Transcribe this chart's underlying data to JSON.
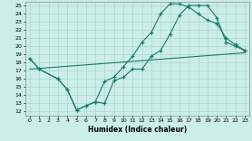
{
  "bg_color": "#cceee8",
  "grid_color": "#aad8d0",
  "line_color": "#1a7a6e",
  "xlim": [
    -0.5,
    23.5
  ],
  "ylim": [
    11.5,
    25.5
  ],
  "xtick_vals": [
    0,
    1,
    2,
    3,
    4,
    5,
    6,
    7,
    8,
    9,
    10,
    11,
    12,
    13,
    14,
    15,
    16,
    17,
    18,
    19,
    20,
    21,
    22,
    23
  ],
  "ytick_vals": [
    12,
    13,
    14,
    15,
    16,
    17,
    18,
    19,
    20,
    21,
    22,
    23,
    24,
    25
  ],
  "xlabel": "Humidex (Indice chaleur)",
  "line1_x": [
    0,
    1,
    3,
    4,
    5,
    6,
    7,
    8,
    9,
    10,
    11,
    12,
    13,
    14,
    15,
    16,
    17,
    18,
    19,
    20,
    21,
    22,
    23
  ],
  "line1_y": [
    18.5,
    17.2,
    16.0,
    14.7,
    12.2,
    12.7,
    13.2,
    13.0,
    15.8,
    16.2,
    17.2,
    17.2,
    18.8,
    19.5,
    21.5,
    23.8,
    25.0,
    25.0,
    25.0,
    23.5,
    20.5,
    20.0,
    19.5
  ],
  "line2_x": [
    0,
    1,
    3,
    4,
    5,
    6,
    7,
    8,
    9,
    10,
    11,
    12,
    13,
    14,
    15,
    16,
    17,
    18,
    19,
    20,
    21,
    22,
    23
  ],
  "line2_y": [
    18.5,
    17.2,
    16.0,
    14.7,
    12.2,
    12.7,
    13.2,
    15.7,
    16.2,
    17.5,
    18.8,
    20.5,
    21.7,
    24.0,
    25.2,
    25.2,
    24.8,
    24.0,
    23.2,
    22.8,
    21.0,
    20.2,
    19.5
  ],
  "line3_x": [
    0,
    23
  ],
  "line3_y": [
    17.2,
    19.2
  ]
}
